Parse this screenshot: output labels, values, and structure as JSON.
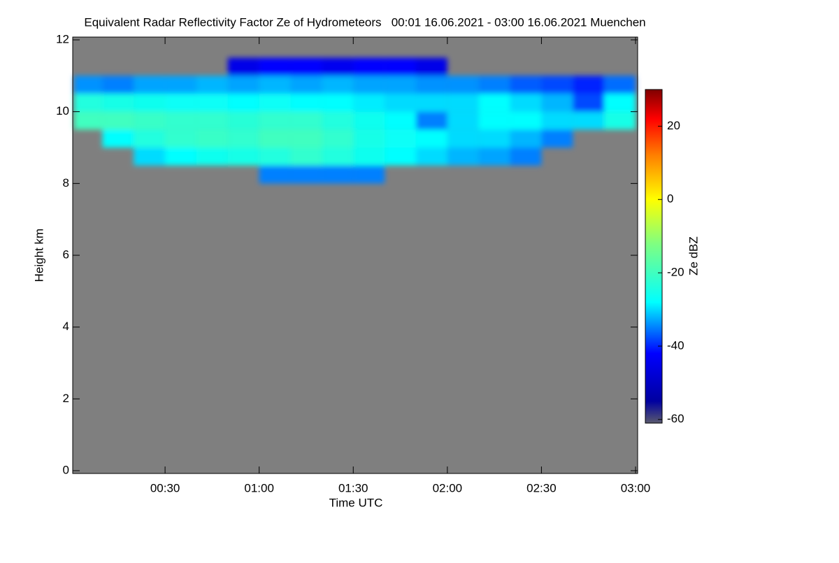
{
  "chart_data": {
    "type": "heatmap",
    "title": "Equivalent Radar Reflectivity Factor Ze of Hydrometeors   00:01 16.06.2021 - 03:00 16.06.2021 Muenchen",
    "xlabel": "Time UTC",
    "ylabel": "Height km",
    "colorbar_label": "Ze dBZ",
    "xlim": [
      1,
      180
    ],
    "xticks": [
      {
        "value": 30,
        "label": "00:30"
      },
      {
        "value": 60,
        "label": "01:00"
      },
      {
        "value": 90,
        "label": "01:30"
      },
      {
        "value": 120,
        "label": "02:00"
      },
      {
        "value": 150,
        "label": "02:30"
      },
      {
        "value": 180,
        "label": "03:00"
      }
    ],
    "ylim": [
      0,
      12
    ],
    "yticks": [
      0,
      2,
      4,
      6,
      8,
      10,
      12
    ],
    "clim": [
      -61,
      30
    ],
    "cticks": [
      -60,
      -40,
      -20,
      0,
      20
    ],
    "colormap": [
      [
        -61,
        "#5a5a6e"
      ],
      [
        -55,
        "#0000a0"
      ],
      [
        -42,
        "#0000ff"
      ],
      [
        -28,
        "#00ffff"
      ],
      [
        -12,
        "#80ff80"
      ],
      [
        0,
        "#ffff00"
      ],
      [
        12,
        "#ff8000"
      ],
      [
        22,
        "#ff0000"
      ],
      [
        30,
        "#800000"
      ]
    ],
    "background": "#7f7f7f",
    "x": [
      5,
      15,
      25,
      35,
      45,
      55,
      65,
      75,
      85,
      95,
      105,
      115,
      125,
      135,
      145,
      155,
      165,
      175
    ],
    "y": [
      8.25,
      8.75,
      9.25,
      9.75,
      10.25,
      10.75,
      11.25
    ],
    "z": [
      [
        null,
        null,
        null,
        null,
        null,
        null,
        -35,
        -35,
        -35,
        -35,
        null,
        null,
        null,
        null,
        null,
        null,
        null,
        null
      ],
      [
        null,
        null,
        -30,
        -28,
        -26,
        -25,
        -24,
        -22,
        -24,
        -26,
        -28,
        -30,
        -32,
        -33,
        -35,
        null,
        null,
        null
      ],
      [
        null,
        -28,
        -24,
        -22,
        -21,
        -22,
        -20,
        -20,
        -22,
        -25,
        -27,
        -28,
        -30,
        -30,
        -32,
        -35,
        null,
        null
      ],
      [
        -20,
        -20,
        -21,
        -22,
        -22,
        -23,
        -22,
        -22,
        -24,
        -26,
        -28,
        -35,
        -30,
        -28,
        -28,
        -30,
        -30,
        -25
      ],
      [
        -24,
        -25,
        -26,
        -27,
        -27,
        -28,
        -27,
        -28,
        -28,
        -29,
        -30,
        -30,
        -30,
        -28,
        -30,
        -32,
        -38,
        -28
      ],
      [
        -34,
        -35,
        -33,
        -33,
        -32,
        -33,
        -32,
        -33,
        -32,
        -33,
        -33,
        -34,
        -34,
        -35,
        -37,
        -38,
        -40,
        -36
      ],
      [
        null,
        null,
        null,
        null,
        null,
        -45,
        -42,
        -42,
        -44,
        -42,
        -42,
        -45,
        null,
        null,
        null,
        null,
        null,
        null
      ]
    ]
  }
}
